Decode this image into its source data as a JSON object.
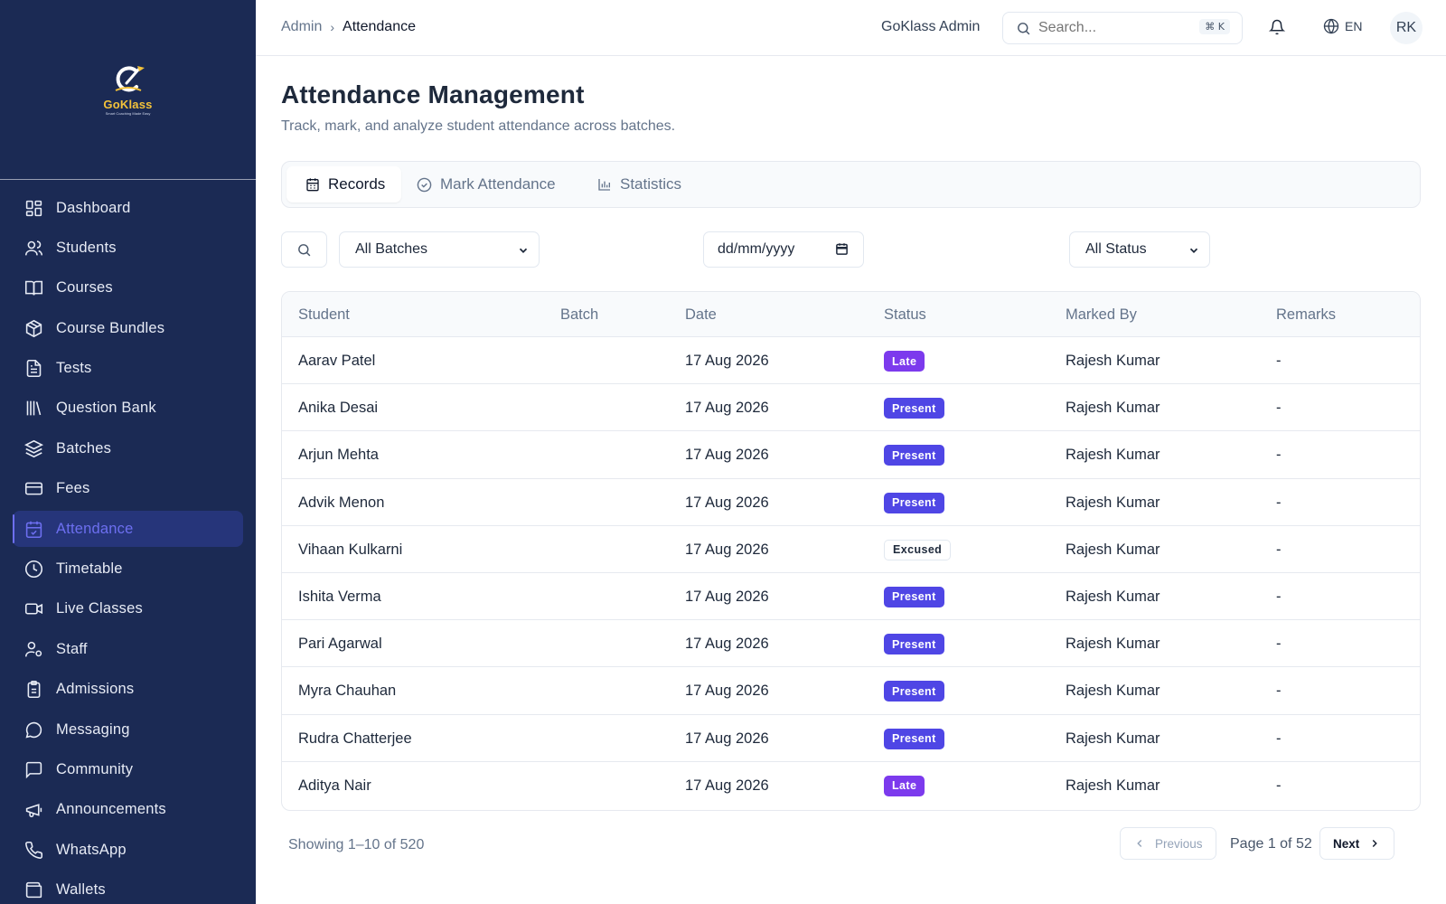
{
  "brand": {
    "logo_text": "GoKlass",
    "logo_sub": "Smart Coaching Made Easy"
  },
  "sidebar": {
    "items": [
      {
        "label": "Dashboard",
        "icon": "dashboard-icon"
      },
      {
        "label": "Students",
        "icon": "users-icon"
      },
      {
        "label": "Courses",
        "icon": "book-icon"
      },
      {
        "label": "Course Bundles",
        "icon": "package-icon"
      },
      {
        "label": "Tests",
        "icon": "file-text-icon"
      },
      {
        "label": "Question Bank",
        "icon": "library-icon"
      },
      {
        "label": "Batches",
        "icon": "layers-icon"
      },
      {
        "label": "Fees",
        "icon": "credit-card-icon"
      },
      {
        "label": "Attendance",
        "icon": "calendar-check-icon",
        "active": true
      },
      {
        "label": "Timetable",
        "icon": "clock-icon"
      },
      {
        "label": "Live Classes",
        "icon": "video-icon"
      },
      {
        "label": "Staff",
        "icon": "user-cog-icon"
      },
      {
        "label": "Admissions",
        "icon": "clipboard-icon"
      },
      {
        "label": "Messaging",
        "icon": "message-circle-icon"
      },
      {
        "label": "Community",
        "icon": "message-square-icon"
      },
      {
        "label": "Announcements",
        "icon": "megaphone-icon"
      },
      {
        "label": "WhatsApp",
        "icon": "phone-icon"
      },
      {
        "label": "Wallets",
        "icon": "wallet-icon"
      }
    ]
  },
  "header": {
    "breadcrumb_root": "Admin",
    "breadcrumb_sep": "›",
    "breadcrumb_current": "Attendance",
    "admin_name": "GoKlass Admin",
    "search_placeholder": "Search...",
    "search_shortcut": "⌘ K",
    "language": "EN",
    "avatar_initials": "RK"
  },
  "page": {
    "title": "Attendance Management",
    "subtitle": "Track, mark, and analyze student attendance across batches."
  },
  "tabs": [
    {
      "label": "Records",
      "active": true
    },
    {
      "label": "Mark Attendance"
    },
    {
      "label": "Statistics"
    }
  ],
  "filters": {
    "batch_select": "All Batches",
    "date_placeholder": "dd/mm/yyyy",
    "status_select": "All Status"
  },
  "table": {
    "columns": [
      "Student",
      "Batch",
      "Date",
      "Status",
      "Marked By",
      "Remarks"
    ],
    "rows": [
      {
        "student": "Aarav Patel",
        "batch": "",
        "date": "17 Aug 2026",
        "status": "Late",
        "marked_by": "Rajesh Kumar",
        "remarks": "-"
      },
      {
        "student": "Anika Desai",
        "batch": "",
        "date": "17 Aug 2026",
        "status": "Present",
        "marked_by": "Rajesh Kumar",
        "remarks": "-"
      },
      {
        "student": "Arjun Mehta",
        "batch": "",
        "date": "17 Aug 2026",
        "status": "Present",
        "marked_by": "Rajesh Kumar",
        "remarks": "-"
      },
      {
        "student": "Advik Menon",
        "batch": "",
        "date": "17 Aug 2026",
        "status": "Present",
        "marked_by": "Rajesh Kumar",
        "remarks": "-"
      },
      {
        "student": "Vihaan Kulkarni",
        "batch": "",
        "date": "17 Aug 2026",
        "status": "Excused",
        "marked_by": "Rajesh Kumar",
        "remarks": "-"
      },
      {
        "student": "Ishita Verma",
        "batch": "",
        "date": "17 Aug 2026",
        "status": "Present",
        "marked_by": "Rajesh Kumar",
        "remarks": "-"
      },
      {
        "student": "Pari Agarwal",
        "batch": "",
        "date": "17 Aug 2026",
        "status": "Present",
        "marked_by": "Rajesh Kumar",
        "remarks": "-"
      },
      {
        "student": "Myra Chauhan",
        "batch": "",
        "date": "17 Aug 2026",
        "status": "Present",
        "marked_by": "Rajesh Kumar",
        "remarks": "-"
      },
      {
        "student": "Rudra Chatterjee",
        "batch": "",
        "date": "17 Aug 2026",
        "status": "Present",
        "marked_by": "Rajesh Kumar",
        "remarks": "-"
      },
      {
        "student": "Aditya Nair",
        "batch": "",
        "date": "17 Aug 2026",
        "status": "Late",
        "marked_by": "Rajesh Kumar",
        "remarks": "-"
      }
    ]
  },
  "pagination": {
    "showing": "Showing 1–10 of 520",
    "previous": "Previous",
    "page_info": "Page 1 of 52",
    "next": "Next"
  },
  "colors": {
    "sidebar_bg": "#1b2a54",
    "accent": "#4f46e5",
    "late": "#7c3aed",
    "present": "#4f46e5"
  }
}
